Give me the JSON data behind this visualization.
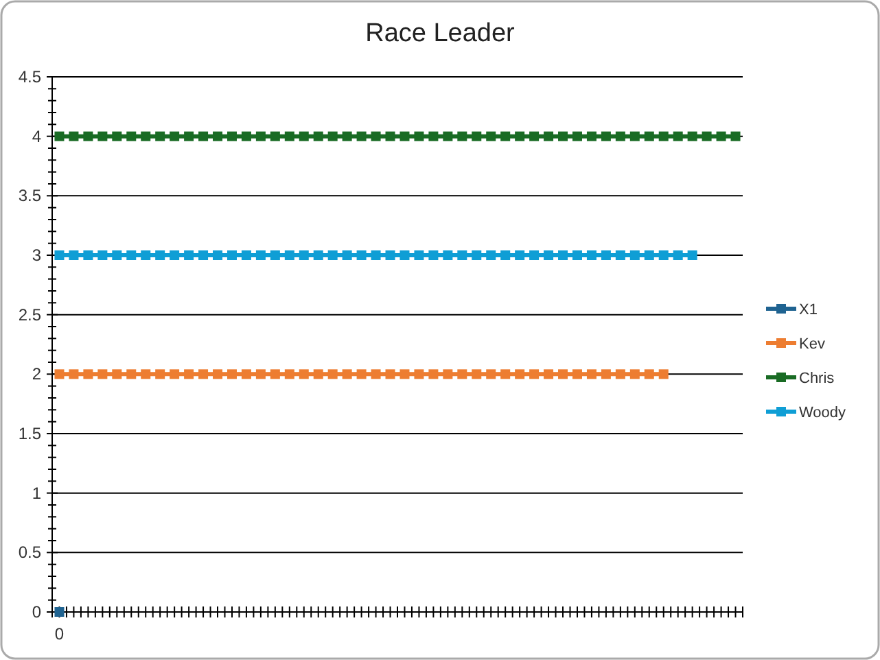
{
  "chart_data": {
    "type": "line",
    "title": "Race Leader",
    "categories": [
      "0",
      null,
      null,
      null,
      null,
      null,
      null,
      null,
      null,
      null,
      null,
      null,
      null,
      null,
      null,
      null,
      null,
      null,
      null,
      null,
      null,
      null,
      null,
      null,
      null,
      null,
      null,
      null,
      null,
      null,
      null,
      null,
      null,
      null,
      null,
      null,
      null,
      null,
      null,
      null,
      null,
      null,
      null,
      null,
      null,
      null,
      null,
      null
    ],
    "series": [
      {
        "name": "X1",
        "color": "#1f6391",
        "values": [
          0,
          null,
          null,
          null,
          null,
          null,
          null,
          null,
          null,
          null,
          null,
          null,
          null,
          null,
          null,
          null,
          null,
          null,
          null,
          null,
          null,
          null,
          null,
          null,
          null,
          null,
          null,
          null,
          null,
          null,
          null,
          null,
          null,
          null,
          null,
          null,
          null,
          null,
          null,
          null,
          null,
          null,
          null,
          null,
          null,
          null,
          null,
          null
        ]
      },
      {
        "name": "Kev",
        "color": "#ed7d31",
        "values": [
          2,
          2,
          2,
          2,
          2,
          2,
          2,
          2,
          2,
          2,
          2,
          2,
          2,
          2,
          2,
          2,
          2,
          2,
          2,
          2,
          2,
          2,
          2,
          2,
          2,
          2,
          2,
          2,
          2,
          2,
          2,
          2,
          2,
          2,
          2,
          2,
          2,
          2,
          2,
          2,
          2,
          2,
          2,
          null,
          null,
          null,
          null,
          null
        ]
      },
      {
        "name": "Chris",
        "color": "#196b24",
        "values": [
          4,
          4,
          4,
          4,
          4,
          4,
          4,
          4,
          4,
          4,
          4,
          4,
          4,
          4,
          4,
          4,
          4,
          4,
          4,
          4,
          4,
          4,
          4,
          4,
          4,
          4,
          4,
          4,
          4,
          4,
          4,
          4,
          4,
          4,
          4,
          4,
          4,
          4,
          4,
          4,
          4,
          4,
          4,
          4,
          4,
          4,
          4,
          4
        ]
      },
      {
        "name": "Woody",
        "color": "#0f9ed5",
        "values": [
          3,
          3,
          3,
          3,
          3,
          3,
          3,
          3,
          3,
          3,
          3,
          3,
          3,
          3,
          3,
          3,
          3,
          3,
          3,
          3,
          3,
          3,
          3,
          3,
          3,
          3,
          3,
          3,
          3,
          3,
          3,
          3,
          3,
          3,
          3,
          3,
          3,
          3,
          3,
          3,
          3,
          3,
          3,
          3,
          3,
          null,
          null,
          null
        ]
      }
    ],
    "ylim": [
      0,
      4.5
    ],
    "yticks": [
      0,
      0.5,
      1,
      1.5,
      2,
      2.5,
      3,
      3.5,
      4,
      4.5
    ],
    "grid": "y",
    "legend": "right",
    "marker": "square",
    "line_style": "solid"
  }
}
